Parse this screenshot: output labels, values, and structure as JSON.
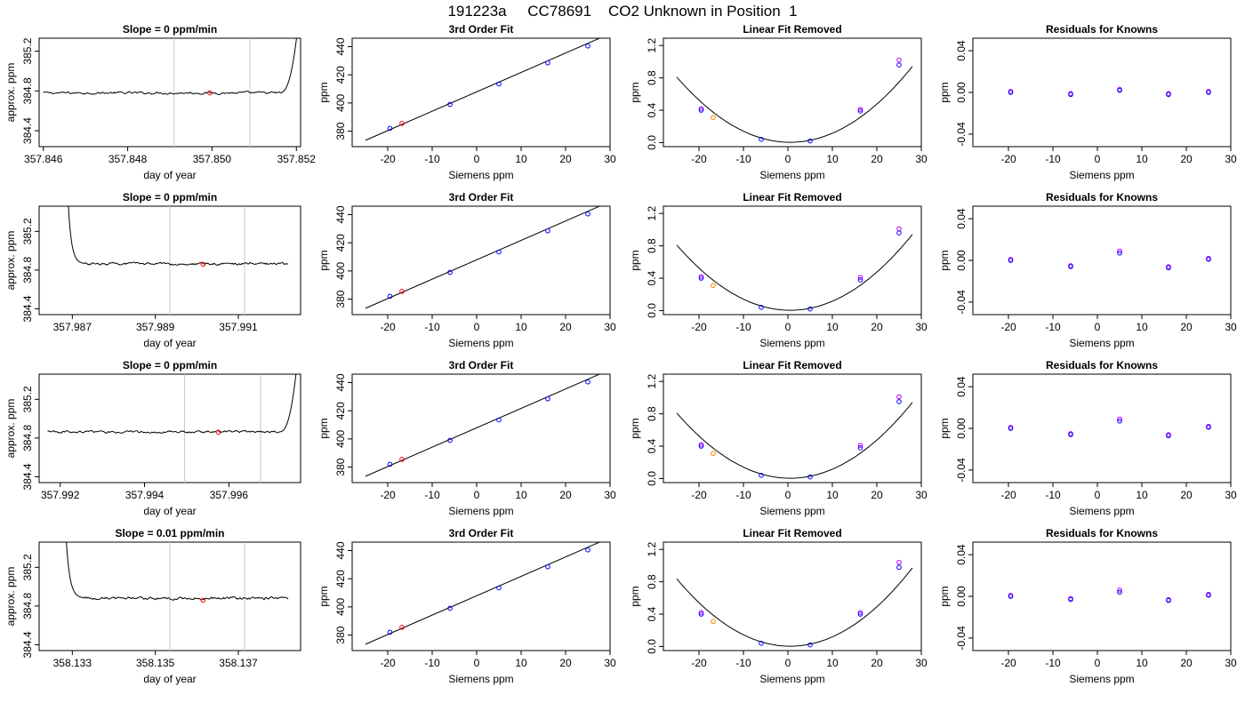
{
  "figure": {
    "title": "191223a     CC78691    CO2 Unknown in Position  1"
  },
  "colors": {
    "axis": "#000000",
    "trace": "#000000",
    "marker_line": "#c8c8c8",
    "known_point": "#0000ff",
    "unknown_point": "#ff0000",
    "predicted_point": "#c000ff",
    "orange_point": "#ff8000"
  },
  "chart_data": [
    {
      "type": "line",
      "row": 0,
      "panel": "timeseries",
      "title": "Slope =  0  ppm/min",
      "xlabel": "day of year",
      "ylabel": "approx. ppm",
      "xlim": [
        357.8459,
        357.8521
      ],
      "ylim": [
        384.24,
        385.33
      ],
      "xticks": [
        "357.846",
        "357.848",
        "357.850",
        "357.852"
      ],
      "xtick_values": [
        357.846,
        357.848,
        357.85,
        357.852
      ],
      "yticks": [
        "384.4",
        "384.8",
        "385.2"
      ],
      "ytick_values": [
        384.4,
        384.8,
        385.2
      ],
      "markers_x": [
        357.8491,
        357.8509
      ],
      "point": [
        357.84995,
        384.78
      ],
      "trace": {
        "start": 357.846,
        "end": 357.8516,
        "base": 384.78,
        "noise": 0.018,
        "head": null,
        "tail": {
          "len": 0.00045,
          "to": 385.5
        }
      }
    },
    {
      "type": "scatter",
      "row": 0,
      "panel": "fit",
      "title": "3rd Order Fit",
      "xlabel": "Siemens ppm",
      "ylabel": "ppm",
      "xlim": [
        -28,
        30
      ],
      "ylim": [
        369,
        446
      ],
      "xticks": [
        "-20",
        "-10",
        "0",
        "10",
        "20",
        "30"
      ],
      "xtick_values": [
        -20,
        -10,
        0,
        10,
        20,
        30
      ],
      "yticks": [
        "380",
        "400",
        "420",
        "440"
      ],
      "ytick_values": [
        380,
        400,
        420,
        440
      ],
      "line": [
        [
          -25,
          373.5
        ],
        [
          28,
          446.5
        ]
      ],
      "known": [
        [
          -19.5,
          382.0
        ],
        [
          -6,
          399.0
        ],
        [
          5,
          413.5
        ],
        [
          16,
          428.5
        ],
        [
          25,
          440.5
        ]
      ],
      "unknown": [
        [
          -16.8,
          385.5
        ]
      ]
    },
    {
      "type": "scatter",
      "row": 0,
      "panel": "linearfit",
      "title": "Linear Fit Removed",
      "xlabel": "Siemens ppm",
      "ylabel": "ppm",
      "xlim": [
        -28,
        30
      ],
      "ylim": [
        -0.05,
        1.29
      ],
      "xticks": [
        "-20",
        "-10",
        "0",
        "10",
        "20",
        "30"
      ],
      "xtick_values": [
        -20,
        -10,
        0,
        10,
        20,
        30
      ],
      "yticks": [
        "0.0",
        "0.4",
        "0.8",
        "1.2"
      ],
      "ytick_values": [
        0,
        0.4,
        0.8,
        1.2
      ],
      "curve": {
        "from": -25,
        "to": 28,
        "vertex": 0.5,
        "a": 0.00124,
        "c": 0.004
      },
      "known": [
        [
          -19.5,
          0.4
        ],
        [
          -6,
          0.04
        ],
        [
          5,
          0.02
        ],
        [
          16.3,
          0.39
        ],
        [
          25,
          0.96
        ]
      ],
      "predicted": [
        [
          -19.5,
          0.42
        ],
        [
          16.3,
          0.41
        ],
        [
          25,
          1.02
        ]
      ],
      "unknown": [
        [
          -16.8,
          0.31
        ]
      ]
    },
    {
      "type": "scatter",
      "row": 0,
      "panel": "residuals",
      "title": "Residuals for Knowns",
      "xlabel": "Siemens ppm",
      "ylabel": "ppm",
      "xlim": [
        -28,
        30
      ],
      "ylim": [
        -0.052,
        0.052
      ],
      "xticks": [
        "-20",
        "-10",
        "0",
        "10",
        "20",
        "30"
      ],
      "xtick_values": [
        -20,
        -10,
        0,
        10,
        20,
        30
      ],
      "yticks": [
        "-0.04",
        "0.00",
        "0.04"
      ],
      "ytick_values": [
        -0.04,
        0,
        0.04
      ],
      "known": [
        [
          -19.5,
          0.0
        ],
        [
          -6,
          -0.002
        ],
        [
          5,
          0.002
        ],
        [
          16,
          -0.002
        ],
        [
          25,
          0.0
        ]
      ],
      "predicted": [
        [
          -19.5,
          0.001
        ],
        [
          -6,
          -0.001
        ],
        [
          5,
          0.003
        ],
        [
          16,
          -0.001
        ],
        [
          25,
          0.001
        ]
      ]
    },
    {
      "type": "line",
      "row": 1,
      "panel": "timeseries",
      "title": "Slope =  0  ppm/min",
      "xlabel": "day of year",
      "ylabel": "approx. ppm",
      "xlim": [
        357.9862,
        357.9925
      ],
      "ylim": [
        384.34,
        385.46
      ],
      "xticks": [
        "357.987",
        "357.989",
        "357.991"
      ],
      "xtick_values": [
        357.987,
        357.989,
        357.991
      ],
      "yticks": [
        "384.4",
        "384.8",
        "385.2"
      ],
      "ytick_values": [
        384.4,
        384.8,
        385.2
      ],
      "markers_x": [
        357.98935,
        357.99115
      ],
      "point": [
        357.99015,
        384.86
      ],
      "trace": {
        "start": 357.9873,
        "end": 357.9922,
        "base": 384.865,
        "noise": 0.018,
        "head": {
          "len": 0.0004,
          "from": 385.5
        },
        "tail": null
      }
    },
    {
      "type": "scatter",
      "row": 1,
      "panel": "fit",
      "title": "3rd Order Fit",
      "xlabel": "Siemens ppm",
      "ylabel": "ppm",
      "xlim": [
        -28,
        30
      ],
      "ylim": [
        369,
        446
      ],
      "xticks": [
        "-20",
        "-10",
        "0",
        "10",
        "20",
        "30"
      ],
      "xtick_values": [
        -20,
        -10,
        0,
        10,
        20,
        30
      ],
      "yticks": [
        "380",
        "400",
        "420",
        "440"
      ],
      "ytick_values": [
        380,
        400,
        420,
        440
      ],
      "line": [
        [
          -25,
          373.5
        ],
        [
          28,
          446.5
        ]
      ],
      "known": [
        [
          -19.5,
          382.0
        ],
        [
          -6,
          399.0
        ],
        [
          5,
          413.5
        ],
        [
          16,
          428.5
        ],
        [
          25,
          440.5
        ]
      ],
      "unknown": [
        [
          -16.8,
          385.5
        ]
      ]
    },
    {
      "type": "scatter",
      "row": 1,
      "panel": "linearfit",
      "title": "Linear Fit Removed",
      "xlabel": "Siemens ppm",
      "ylabel": "ppm",
      "xlim": [
        -28,
        30
      ],
      "ylim": [
        -0.05,
        1.29
      ],
      "xticks": [
        "-20",
        "-10",
        "0",
        "10",
        "20",
        "30"
      ],
      "xtick_values": [
        -20,
        -10,
        0,
        10,
        20,
        30
      ],
      "yticks": [
        "0.0",
        "0.4",
        "0.8",
        "1.2"
      ],
      "ytick_values": [
        0,
        0.4,
        0.8,
        1.2
      ],
      "curve": {
        "from": -25,
        "to": 28,
        "vertex": 0.5,
        "a": 0.00124,
        "c": 0.004
      },
      "known": [
        [
          -19.5,
          0.4
        ],
        [
          -6,
          0.04
        ],
        [
          5,
          0.02
        ],
        [
          16.3,
          0.38
        ],
        [
          25,
          0.96
        ]
      ],
      "predicted": [
        [
          -19.5,
          0.42
        ],
        [
          16.3,
          0.41
        ],
        [
          25,
          1.01
        ]
      ],
      "unknown": [
        [
          -16.8,
          0.31
        ]
      ]
    },
    {
      "type": "scatter",
      "row": 1,
      "panel": "residuals",
      "title": "Residuals for Knowns",
      "xlabel": "Siemens ppm",
      "ylabel": "ppm",
      "xlim": [
        -28,
        30
      ],
      "ylim": [
        -0.052,
        0.052
      ],
      "xticks": [
        "-20",
        "-10",
        "0",
        "10",
        "20",
        "30"
      ],
      "xtick_values": [
        -20,
        -10,
        0,
        10,
        20,
        30
      ],
      "yticks": [
        "-0.04",
        "0.00",
        "0.04"
      ],
      "ytick_values": [
        -0.04,
        0,
        0.04
      ],
      "known": [
        [
          -19.5,
          0.0
        ],
        [
          -6,
          -0.006
        ],
        [
          5,
          0.007
        ],
        [
          16,
          -0.007
        ],
        [
          25,
          0.001
        ]
      ],
      "predicted": [
        [
          -19.5,
          0.001
        ],
        [
          -6,
          -0.005
        ],
        [
          5,
          0.009
        ],
        [
          16,
          -0.006
        ],
        [
          25,
          0.002
        ]
      ]
    },
    {
      "type": "line",
      "row": 2,
      "panel": "timeseries",
      "title": "Slope =  0  ppm/min",
      "xlabel": "day of year",
      "ylabel": "approx. ppm",
      "xlim": [
        357.9915,
        357.9977
      ],
      "ylim": [
        384.34,
        385.46
      ],
      "xticks": [
        "357.992",
        "357.994",
        "357.996"
      ],
      "xtick_values": [
        357.992,
        357.994,
        357.996
      ],
      "yticks": [
        "384.4",
        "384.8",
        "385.2"
      ],
      "ytick_values": [
        384.4,
        384.8,
        385.2
      ],
      "markers_x": [
        357.99495,
        357.99675
      ],
      "point": [
        357.99575,
        384.86
      ],
      "trace": {
        "start": 357.9917,
        "end": 357.9972,
        "base": 384.865,
        "noise": 0.018,
        "head": null,
        "tail": {
          "len": 0.0004,
          "to": 385.5
        }
      }
    },
    {
      "type": "scatter",
      "row": 2,
      "panel": "fit",
      "title": "3rd Order Fit",
      "xlabel": "Siemens ppm",
      "ylabel": "ppm",
      "xlim": [
        -28,
        30
      ],
      "ylim": [
        369,
        446
      ],
      "xticks": [
        "-20",
        "-10",
        "0",
        "10",
        "20",
        "30"
      ],
      "xtick_values": [
        -20,
        -10,
        0,
        10,
        20,
        30
      ],
      "yticks": [
        "380",
        "400",
        "420",
        "440"
      ],
      "ytick_values": [
        380,
        400,
        420,
        440
      ],
      "line": [
        [
          -25,
          373.5
        ],
        [
          28,
          446.5
        ]
      ],
      "known": [
        [
          -19.5,
          382.0
        ],
        [
          -6,
          399.0
        ],
        [
          5,
          413.5
        ],
        [
          16,
          428.5
        ],
        [
          25,
          440.5
        ]
      ],
      "unknown": [
        [
          -16.8,
          385.5
        ]
      ]
    },
    {
      "type": "scatter",
      "row": 2,
      "panel": "linearfit",
      "title": "Linear Fit Removed",
      "xlabel": "Siemens ppm",
      "ylabel": "ppm",
      "xlim": [
        -28,
        30
      ],
      "ylim": [
        -0.05,
        1.29
      ],
      "xticks": [
        "-20",
        "-10",
        "0",
        "10",
        "20",
        "30"
      ],
      "xtick_values": [
        -20,
        -10,
        0,
        10,
        20,
        30
      ],
      "yticks": [
        "0.0",
        "0.4",
        "0.8",
        "1.2"
      ],
      "ytick_values": [
        0,
        0.4,
        0.8,
        1.2
      ],
      "curve": {
        "from": -25,
        "to": 28,
        "vertex": 0.5,
        "a": 0.00124,
        "c": 0.004
      },
      "known": [
        [
          -19.5,
          0.4
        ],
        [
          -6,
          0.04
        ],
        [
          5,
          0.02
        ],
        [
          16.3,
          0.38
        ],
        [
          25,
          0.95
        ]
      ],
      "predicted": [
        [
          -19.5,
          0.42
        ],
        [
          16.3,
          0.41
        ],
        [
          25,
          1.01
        ]
      ],
      "unknown": [
        [
          -16.8,
          0.31
        ]
      ]
    },
    {
      "type": "scatter",
      "row": 2,
      "panel": "residuals",
      "title": "Residuals for Knowns",
      "xlabel": "Siemens ppm",
      "ylabel": "ppm",
      "xlim": [
        -28,
        30
      ],
      "ylim": [
        -0.052,
        0.052
      ],
      "xticks": [
        "-20",
        "-10",
        "0",
        "10",
        "20",
        "30"
      ],
      "xtick_values": [
        -20,
        -10,
        0,
        10,
        20,
        30
      ],
      "yticks": [
        "-0.04",
        "0.00",
        "0.04"
      ],
      "ytick_values": [
        -0.04,
        0,
        0.04
      ],
      "known": [
        [
          -19.5,
          0.0
        ],
        [
          -6,
          -0.006
        ],
        [
          5,
          0.007
        ],
        [
          16,
          -0.007
        ],
        [
          25,
          0.001
        ]
      ],
      "predicted": [
        [
          -19.5,
          0.001
        ],
        [
          -6,
          -0.005
        ],
        [
          5,
          0.009
        ],
        [
          16,
          -0.006
        ],
        [
          25,
          0.002
        ]
      ]
    },
    {
      "type": "line",
      "row": 3,
      "panel": "timeseries",
      "title": "Slope =  0.01  ppm/min",
      "xlabel": "day of year",
      "ylabel": "approx. ppm",
      "xlim": [
        358.1322,
        358.1385
      ],
      "ylim": [
        384.34,
        385.46
      ],
      "xticks": [
        "358.133",
        "358.135",
        "358.137"
      ],
      "xtick_values": [
        358.133,
        358.135,
        358.137
      ],
      "yticks": [
        "384.4",
        "384.8",
        "385.2"
      ],
      "ytick_values": [
        384.4,
        384.8,
        385.2
      ],
      "markers_x": [
        358.13535,
        358.13715
      ],
      "point": [
        358.13615,
        384.86
      ],
      "trace": {
        "start": 358.1333,
        "end": 358.1382,
        "base": 384.88,
        "noise": 0.02,
        "head": {
          "len": 0.00045,
          "from": 385.5
        },
        "tail": null
      }
    },
    {
      "type": "scatter",
      "row": 3,
      "panel": "fit",
      "title": "3rd Order Fit",
      "xlabel": "Siemens ppm",
      "ylabel": "ppm",
      "xlim": [
        -28,
        30
      ],
      "ylim": [
        369,
        446
      ],
      "xticks": [
        "-20",
        "-10",
        "0",
        "10",
        "20",
        "30"
      ],
      "xtick_values": [
        -20,
        -10,
        0,
        10,
        20,
        30
      ],
      "yticks": [
        "380",
        "400",
        "420",
        "440"
      ],
      "ytick_values": [
        380,
        400,
        420,
        440
      ],
      "line": [
        [
          -25,
          373.5
        ],
        [
          28,
          446.5
        ]
      ],
      "known": [
        [
          -19.5,
          382.0
        ],
        [
          -6,
          399.0
        ],
        [
          5,
          413.5
        ],
        [
          16,
          428.5
        ],
        [
          25,
          440.5
        ]
      ],
      "unknown": [
        [
          -16.8,
          385.5
        ]
      ]
    },
    {
      "type": "scatter",
      "row": 3,
      "panel": "linearfit",
      "title": "Linear Fit Removed",
      "xlabel": "Siemens ppm",
      "ylabel": "ppm",
      "xlim": [
        -28,
        30
      ],
      "ylim": [
        -0.05,
        1.29
      ],
      "xticks": [
        "-20",
        "-10",
        "0",
        "10",
        "20",
        "30"
      ],
      "xtick_values": [
        -20,
        -10,
        0,
        10,
        20,
        30
      ],
      "yticks": [
        "0.0",
        "0.4",
        "0.8",
        "1.2"
      ],
      "ytick_values": [
        0,
        0.4,
        0.8,
        1.2
      ],
      "curve": {
        "from": -25,
        "to": 28,
        "vertex": 0.5,
        "a": 0.00128,
        "c": 0.004
      },
      "known": [
        [
          -19.5,
          0.4
        ],
        [
          -6,
          0.04
        ],
        [
          5,
          0.02
        ],
        [
          16.3,
          0.4
        ],
        [
          25,
          0.98
        ]
      ],
      "predicted": [
        [
          -19.5,
          0.42
        ],
        [
          16.3,
          0.42
        ],
        [
          25,
          1.04
        ]
      ],
      "unknown": [
        [
          -16.8,
          0.31
        ]
      ]
    },
    {
      "type": "scatter",
      "row": 3,
      "panel": "residuals",
      "title": "Residuals for Knowns",
      "xlabel": "Siemens ppm",
      "ylabel": "ppm",
      "xlim": [
        -28,
        30
      ],
      "ylim": [
        -0.052,
        0.052
      ],
      "xticks": [
        "-20",
        "-10",
        "0",
        "10",
        "20",
        "30"
      ],
      "xtick_values": [
        -20,
        -10,
        0,
        10,
        20,
        30
      ],
      "yticks": [
        "-0.04",
        "0.00",
        "0.04"
      ],
      "ytick_values": [
        -0.04,
        0,
        0.04
      ],
      "known": [
        [
          -19.5,
          0.0
        ],
        [
          -6,
          -0.003
        ],
        [
          5,
          0.004
        ],
        [
          16,
          -0.004
        ],
        [
          25,
          0.001
        ]
      ],
      "predicted": [
        [
          -19.5,
          0.001
        ],
        [
          -6,
          -0.002
        ],
        [
          5,
          0.006
        ],
        [
          16,
          -0.003
        ],
        [
          25,
          0.002
        ]
      ]
    }
  ]
}
